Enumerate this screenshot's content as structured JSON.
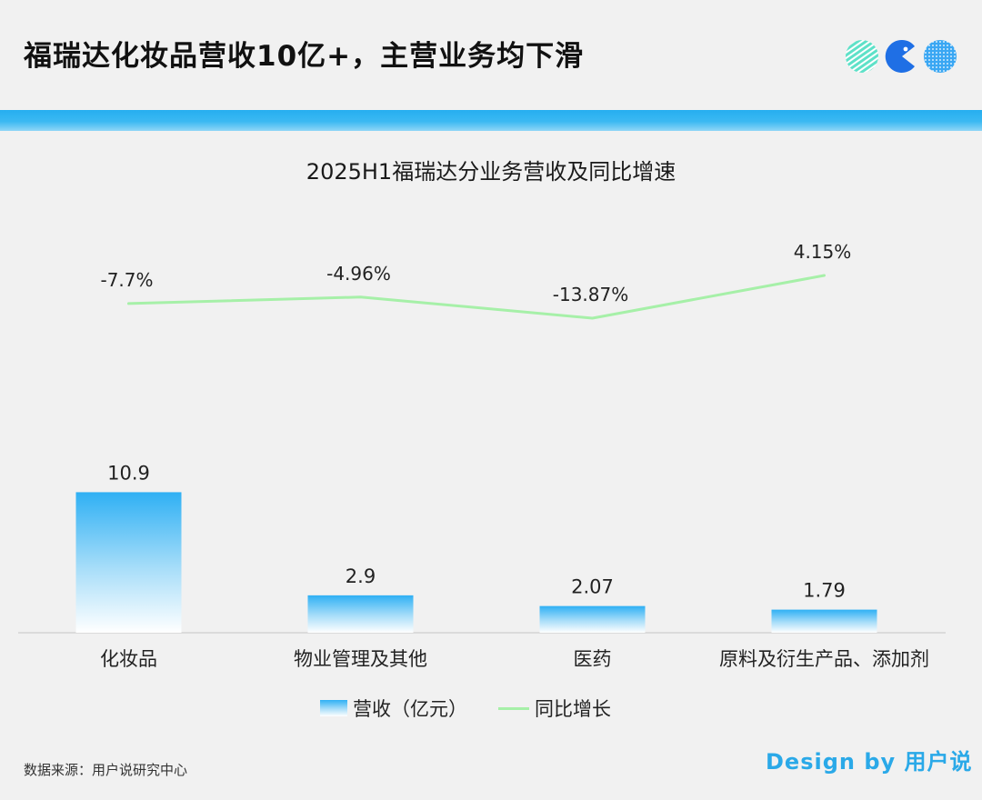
{
  "header": {
    "title": "福瑞达化妆品营收10亿+，主营业务均下滑"
  },
  "colors": {
    "accent": "#2aa9e8",
    "band": "#26aef0",
    "bar_top": "#2fb0f4",
    "bar_bottom": "#ffffff",
    "line": "#a6f0a8",
    "logo_left": "#5ee1c8",
    "logo_mid": "#1f6fe5",
    "logo_right": "#3aa7f3"
  },
  "icons": {
    "logo": "three-circle-logo-icon"
  },
  "chart_data": {
    "type": "bar",
    "title": "2025H1福瑞达分业务营收及同比增速",
    "categories": [
      "化妆品",
      "物业管理及其他",
      "医药",
      "原料及衍生产品、添加剂"
    ],
    "series": [
      {
        "name": "营收（亿元）",
        "type": "bar",
        "values": [
          10.9,
          2.9,
          2.07,
          1.79
        ],
        "labels": [
          "10.9",
          "2.9",
          "2.07",
          "1.79"
        ]
      },
      {
        "name": "同比增长",
        "type": "line",
        "values": [
          -7.7,
          -4.96,
          -13.87,
          4.15
        ],
        "labels": [
          "-7.7%",
          "-4.96%",
          "-13.87%",
          "4.15%"
        ]
      }
    ],
    "legend_position": "bottom-center",
    "grid": false
  },
  "footer": {
    "source": "数据来源：用户说研究中心",
    "credit": "Design by 用户说"
  }
}
